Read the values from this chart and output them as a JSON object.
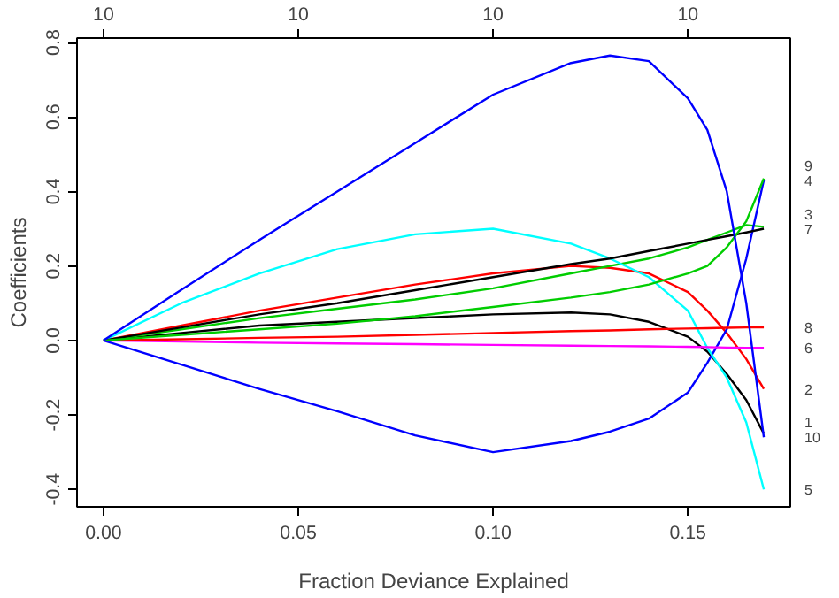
{
  "chart_data": {
    "type": "line",
    "xlabel": "Fraction Deviance Explained",
    "ylabel": "Coefficients",
    "x": [
      0,
      0.02,
      0.04,
      0.06,
      0.08,
      0.1,
      0.12,
      0.13,
      0.14,
      0.15,
      0.155,
      0.16,
      0.165,
      0.1695
    ],
    "series": [
      {
        "name": "1",
        "color": "#000000",
        "values": [
          0,
          0.02,
          0.04,
          0.05,
          0.06,
          0.07,
          0.075,
          0.07,
          0.05,
          0.01,
          -0.03,
          -0.09,
          -0.16,
          -0.25
        ]
      },
      {
        "name": "2",
        "color": "#ff0000",
        "values": [
          0,
          0.04,
          0.08,
          0.115,
          0.15,
          0.18,
          0.2,
          0.195,
          0.18,
          0.13,
          0.08,
          0.02,
          -0.05,
          -0.13
        ]
      },
      {
        "name": "3",
        "color": "#00cd00",
        "values": [
          0,
          0.03,
          0.06,
          0.085,
          0.11,
          0.14,
          0.18,
          0.2,
          0.22,
          0.25,
          0.27,
          0.29,
          0.31,
          0.305
        ]
      },
      {
        "name": "4",
        "color": "#0000ff",
        "values": [
          0,
          -0.065,
          -0.13,
          -0.19,
          -0.255,
          -0.3,
          -0.27,
          -0.245,
          -0.21,
          -0.14,
          -0.06,
          0.03,
          0.22,
          0.43
        ]
      },
      {
        "name": "5",
        "color": "#00ffff",
        "values": [
          0,
          0.1,
          0.18,
          0.245,
          0.285,
          0.3,
          0.26,
          0.22,
          0.17,
          0.08,
          -0.02,
          -0.1,
          -0.22,
          -0.4
        ]
      },
      {
        "name": "6",
        "color": "#ff00ff",
        "values": [
          0,
          -0.003,
          -0.006,
          -0.008,
          -0.01,
          -0.012,
          -0.014,
          -0.015,
          -0.016,
          -0.017,
          -0.018,
          -0.019,
          -0.02,
          -0.02
        ]
      },
      {
        "name": "7",
        "color": "#000000",
        "values": [
          0,
          0.035,
          0.07,
          0.1,
          0.135,
          0.17,
          0.205,
          0.22,
          0.24,
          0.26,
          0.27,
          0.28,
          0.29,
          0.3
        ]
      },
      {
        "name": "8",
        "color": "#ff0000",
        "values": [
          0,
          0.003,
          0.007,
          0.01,
          0.015,
          0.02,
          0.025,
          0.027,
          0.03,
          0.032,
          0.033,
          0.034,
          0.035,
          0.035
        ]
      },
      {
        "name": "9",
        "color": "#00cd00",
        "values": [
          0,
          0.015,
          0.03,
          0.045,
          0.065,
          0.09,
          0.115,
          0.13,
          0.15,
          0.18,
          0.2,
          0.25,
          0.32,
          0.435
        ]
      },
      {
        "name": "10",
        "color": "#0000ff",
        "values": [
          0,
          0.136,
          0.27,
          0.4,
          0.53,
          0.66,
          0.745,
          0.765,
          0.75,
          0.65,
          0.565,
          0.4,
          0.1,
          -0.26
        ]
      }
    ],
    "xlim": [
      -0.0068,
      0.1763
    ],
    "ylim": [
      -0.447,
      0.812
    ],
    "xticks": [
      {
        "value": 0,
        "label": "0.00"
      },
      0.05,
      {
        "value": 0.1,
        "label": "0.10"
      },
      0.15
    ],
    "yticks": [
      {
        "value": -0.4,
        "label": "-0.4"
      },
      {
        "value": -0.2,
        "label": "-0.2"
      },
      {
        "value": 0,
        "label": "0.0"
      },
      0.2,
      0.4,
      0.6,
      0.8
    ],
    "annotations": [
      "10",
      "10",
      "10",
      "10"
    ],
    "legend": "right",
    "marker": "none",
    "line_style": "solid"
  }
}
